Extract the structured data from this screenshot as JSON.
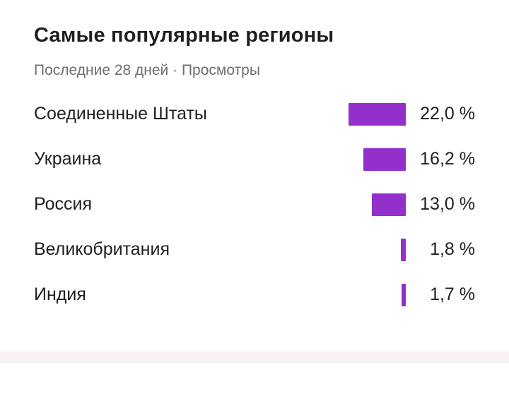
{
  "header": {
    "title": "Самые популярные регионы",
    "subtitle": "Последние 28 дней · Просмотры"
  },
  "colors": {
    "bar": "#9330cc",
    "footer_strip": "#f8f2f5"
  },
  "chart_data": {
    "type": "bar",
    "orientation": "horizontal",
    "title": "Самые популярные регионы",
    "subtitle": "Последние 28 дней · Просмотры",
    "categories": [
      "Соединенные Штаты",
      "Украина",
      "Россия",
      "Великобритания",
      "Индия"
    ],
    "values": [
      22.0,
      16.2,
      13.0,
      1.8,
      1.7
    ],
    "value_labels": [
      "22,0 %",
      "16,2 %",
      "13,0 %",
      "1,8 %",
      "1,7 %"
    ],
    "unit": "%",
    "xlim": [
      0,
      22.0
    ],
    "grid": false,
    "legend": "none"
  }
}
